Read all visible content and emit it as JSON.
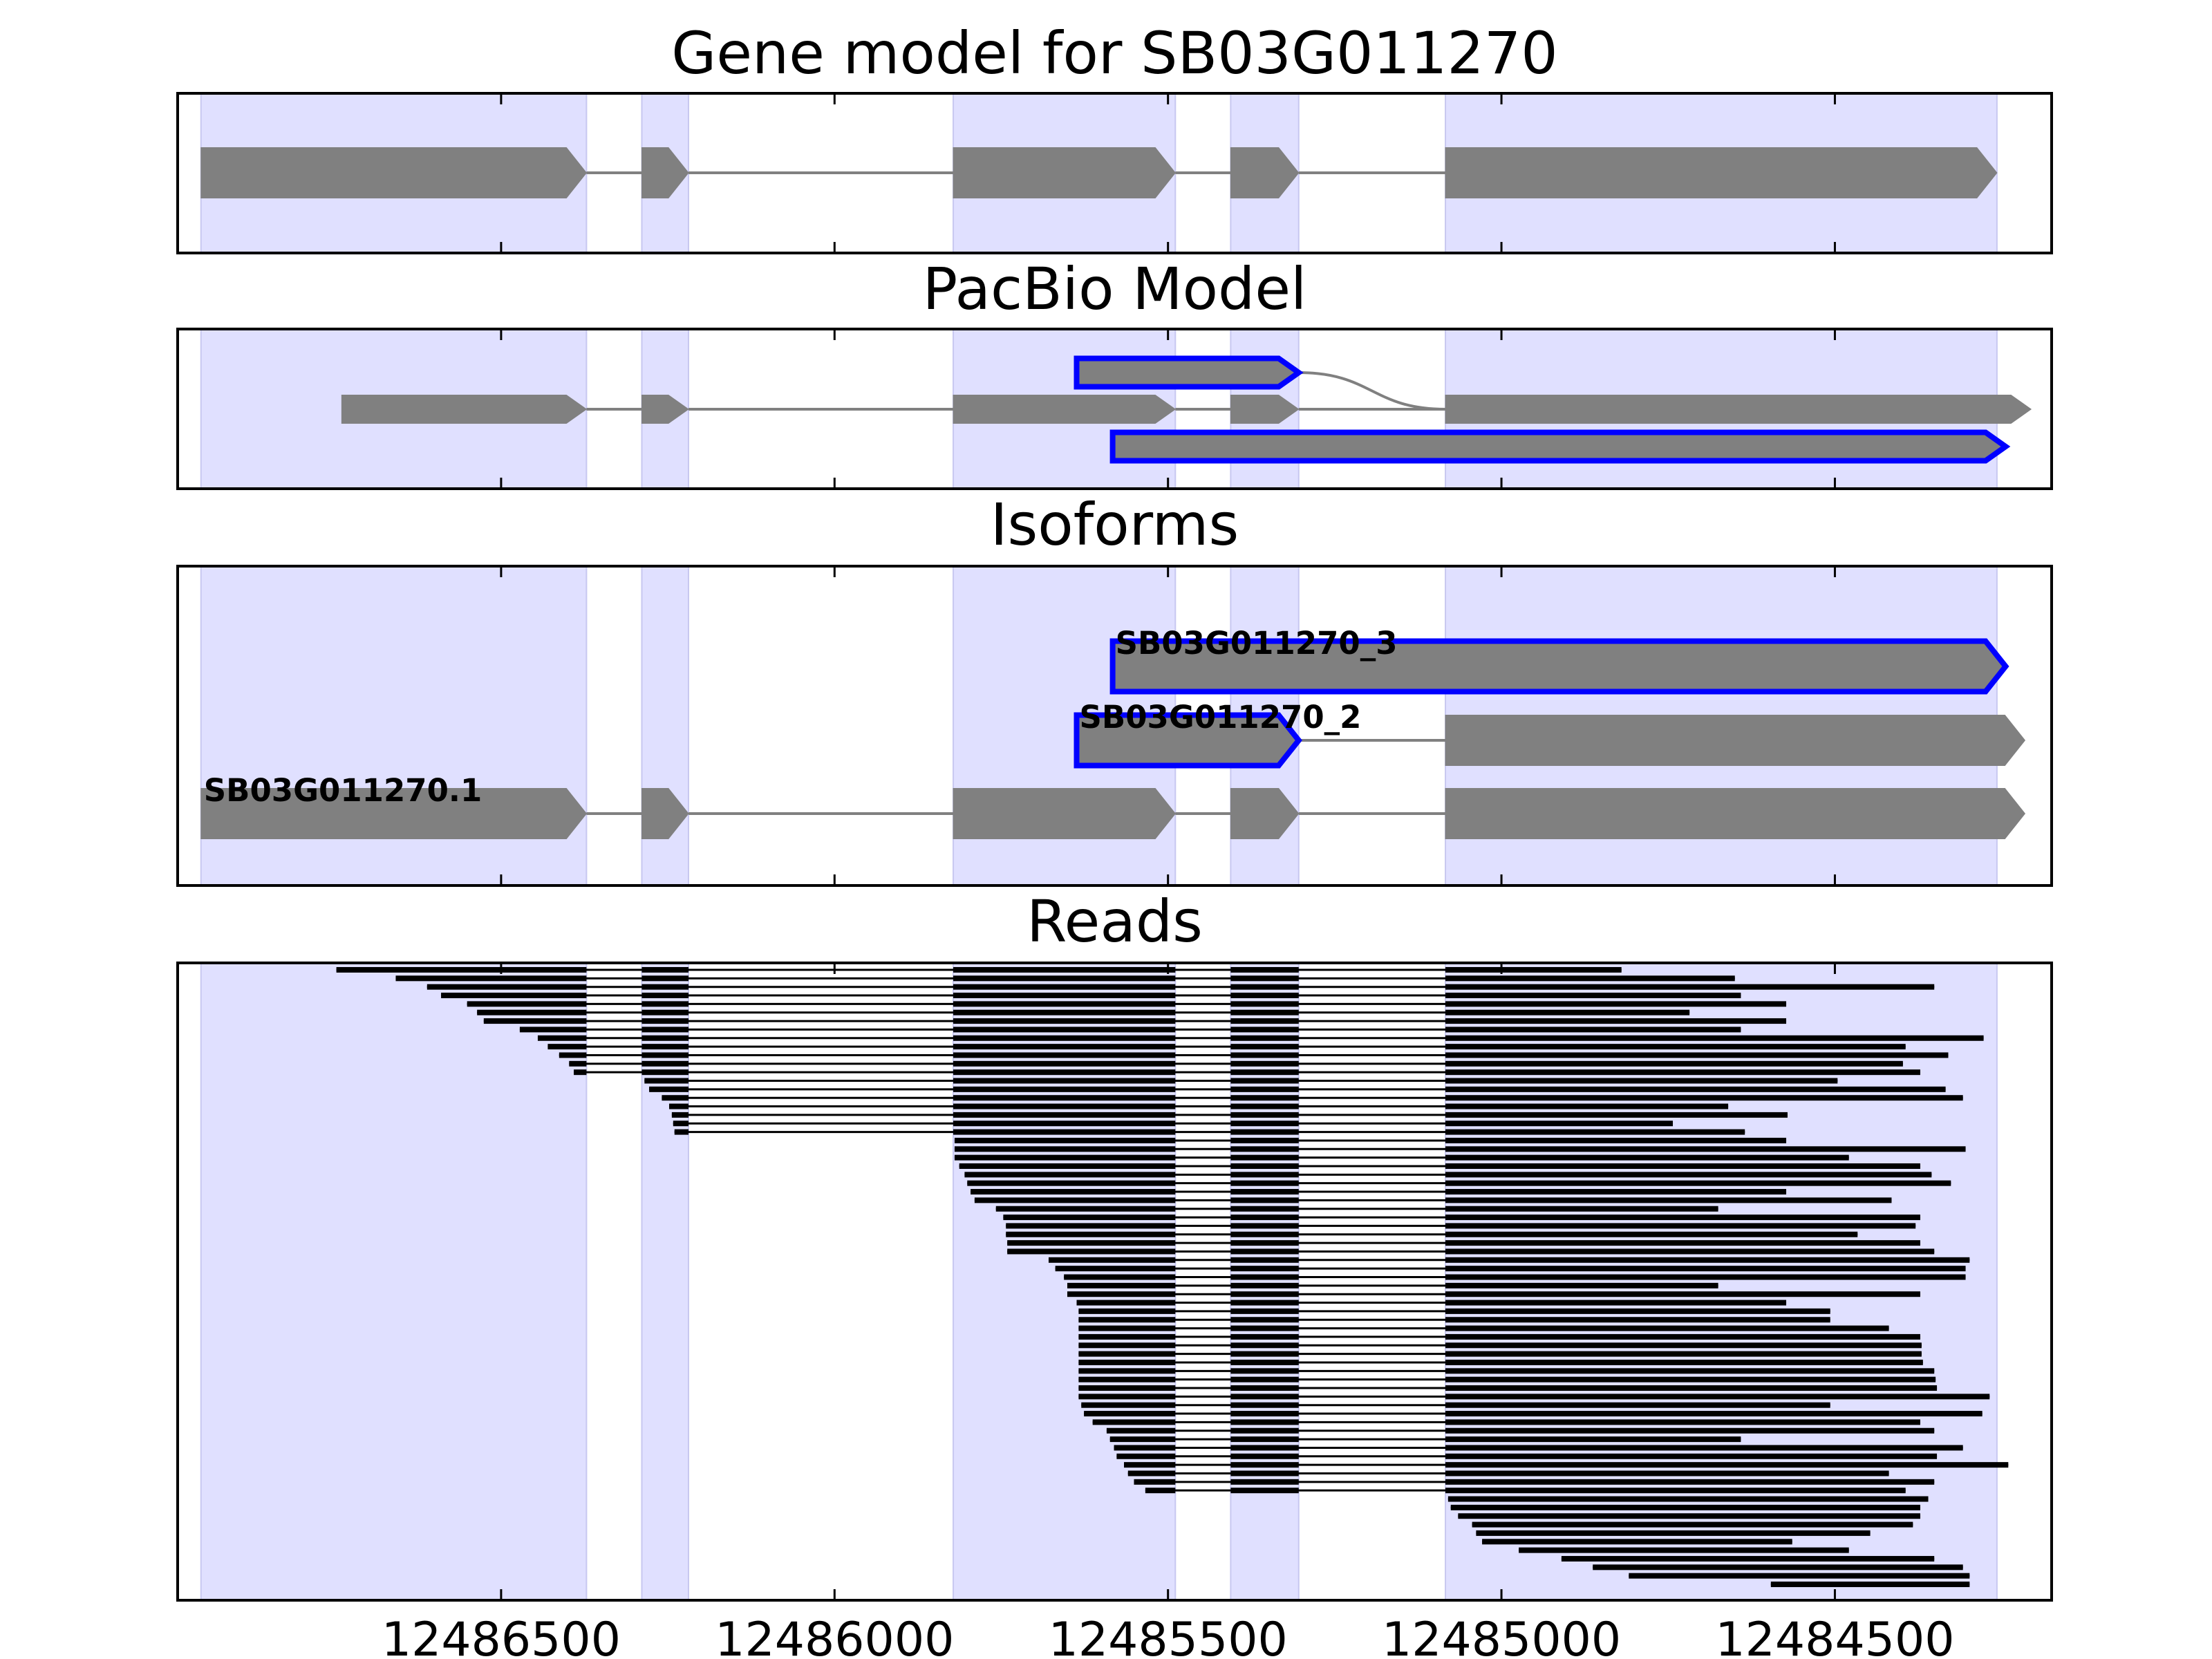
{
  "panels": [
    {
      "title": "Gene model for SB03G011270"
    },
    {
      "title": "PacBio Model"
    },
    {
      "title": "Isoforms"
    },
    {
      "title": "Reads"
    }
  ],
  "xlim": [
    12486985,
    12484175
  ],
  "xticks": [
    12486500,
    12486000,
    12485500,
    12485000,
    12484500
  ],
  "exon_color": "#808080",
  "highlight_color": "#0000ff",
  "shade_color": "#e0e0ff",
  "exons": [
    [
      12486950,
      12486372
    ],
    [
      12486289,
      12486219
    ],
    [
      12485822,
      12485489
    ],
    [
      12485406,
      12485304
    ],
    [
      12485084,
      12484257
    ]
  ],
  "pacbio": [
    {
      "exons": [
        [
          12486739,
          12486372
        ],
        [
          12486289,
          12486219
        ],
        [
          12485822,
          12485489
        ],
        [
          12485406,
          12485304
        ],
        [
          12485084,
          12484206
        ]
      ],
      "highlight": [
        false,
        false,
        false,
        false,
        false
      ]
    },
    {
      "exons": [
        [
          12485637,
          12485304
        ],
        [
          12485084,
          12484206
        ]
      ],
      "highlight": [
        true,
        false
      ]
    },
    {
      "exons": [
        [
          12485583,
          12484244
        ]
      ],
      "highlight": [
        true
      ]
    }
  ],
  "isoforms": [
    {
      "name": "SB03G011270.1",
      "exons": [
        [
          12486950,
          12486372
        ],
        [
          12486289,
          12486219
        ],
        [
          12485822,
          12485489
        ],
        [
          12485406,
          12485304
        ],
        [
          12485084,
          12484215
        ]
      ],
      "highlight": [
        false,
        false,
        false,
        false,
        false
      ]
    },
    {
      "name": "SB03G011270_2",
      "exons": [
        [
          12485637,
          12485304
        ],
        [
          12485084,
          12484215
        ]
      ],
      "highlight": [
        true,
        false
      ]
    },
    {
      "name": "SB03G011270_3",
      "exons": [
        [
          12485583,
          12484244
        ]
      ],
      "highlight": [
        true
      ]
    }
  ],
  "reads": [
    [
      12486747,
      12484820
    ],
    [
      12486658,
      12484650
    ],
    [
      12486611,
      12484351
    ],
    [
      12486590,
      12484641
    ],
    [
      12486551,
      12484573
    ],
    [
      12486536,
      12484718
    ],
    [
      12486526,
      12484573
    ],
    [
      12486472,
      12484641
    ],
    [
      12486445,
      12484277
    ],
    [
      12486430,
      12484394
    ],
    [
      12486413,
      12484330
    ],
    [
      12486398,
      12484398
    ],
    [
      12486391,
      12484372
    ],
    [
      12486285,
      12484496
    ],
    [
      12486278,
      12484334
    ],
    [
      12486259,
      12484308
    ],
    [
      12486248,
      12484660
    ],
    [
      12486244,
      12484571
    ],
    [
      12486242,
      12484743
    ],
    [
      12486240,
      12484635
    ],
    [
      12485820,
      12484573
    ],
    [
      12485820,
      12484304
    ],
    [
      12485820,
      12484479
    ],
    [
      12485813,
      12484372
    ],
    [
      12485805,
      12484355
    ],
    [
      12485801,
      12484326
    ],
    [
      12485796,
      12484573
    ],
    [
      12485790,
      12484415
    ],
    [
      12485758,
      12484675
    ],
    [
      12485747,
      12484372
    ],
    [
      12485743,
      12484379
    ],
    [
      12485743,
      12484466
    ],
    [
      12485741,
      12484372
    ],
    [
      12485741,
      12484351
    ],
    [
      12485679,
      12484298
    ],
    [
      12485669,
      12484304
    ],
    [
      12485656,
      12484304
    ],
    [
      12485651,
      12484675
    ],
    [
      12485651,
      12484372
    ],
    [
      12485637,
      12484573
    ],
    [
      12485634,
      12484507
    ],
    [
      12485634,
      12484507
    ],
    [
      12485634,
      12484419
    ],
    [
      12485634,
      12484372
    ],
    [
      12485634,
      12484370
    ],
    [
      12485634,
      12484370
    ],
    [
      12485634,
      12484368
    ],
    [
      12485634,
      12484351
    ],
    [
      12485634,
      12484349
    ],
    [
      12485634,
      12484347
    ],
    [
      12485634,
      12484268
    ],
    [
      12485630,
      12484507
    ],
    [
      12485626,
      12484279
    ],
    [
      12485613,
      12484372
    ],
    [
      12485592,
      12484351
    ],
    [
      12485587,
      12484641
    ],
    [
      12485581,
      12484308
    ],
    [
      12485577,
      12484347
    ],
    [
      12485566,
      12484240
    ],
    [
      12485560,
      12484419
    ],
    [
      12485551,
      12484351
    ],
    [
      12485534,
      12484394
    ],
    [
      12485080,
      12484360
    ],
    [
      12485076,
      12484372
    ],
    [
      12485065,
      12484372
    ],
    [
      12485044,
      12484383
    ],
    [
      12485038,
      12484447
    ],
    [
      12485029,
      12484564
    ],
    [
      12484974,
      12484479
    ],
    [
      12484910,
      12484351
    ],
    [
      12484863,
      12484308
    ],
    [
      12484809,
      12484298
    ],
    [
      12484596,
      12484298
    ]
  ]
}
